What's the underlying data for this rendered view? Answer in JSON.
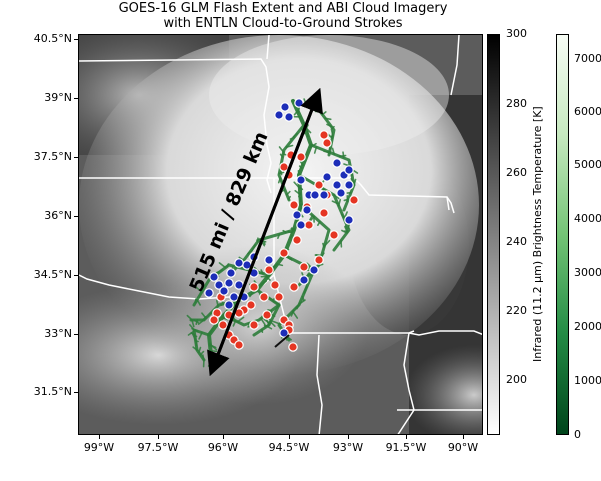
{
  "title": {
    "line1": "GOES-16 GLM Flash Extent and ABI Cloud Imagery",
    "line2": "with ENTLN Cloud-to-Ground Strokes"
  },
  "map": {
    "lat_ticks": [
      "40.5°N",
      "39°N",
      "37.5°N",
      "36°N",
      "34.5°N",
      "33°N",
      "31.5°N"
    ],
    "lon_ticks": [
      "99°W",
      "97.5°W",
      "96°W",
      "94.5°W",
      "93°W",
      "91.5°W",
      "90°W"
    ],
    "annotation": "515 mi / 829 km",
    "colors": {
      "flash_extent": "#2e7d3b",
      "positive_strokes": "#e53523",
      "negative_strokes": "#1d2db8",
      "arrow": "#000000",
      "borders": "#ffffff"
    }
  },
  "colorbar_ir": {
    "ticks": [
      "300",
      "280",
      "260",
      "240",
      "220",
      "200"
    ],
    "axis_label": "Infrared (11.2 μm) Brightness Temperature [K]"
  },
  "colorbar_flash": {
    "ticks": [
      "7000",
      "6000",
      "5000",
      "4000",
      "3000",
      "2000",
      "1000",
      "0"
    ]
  }
}
